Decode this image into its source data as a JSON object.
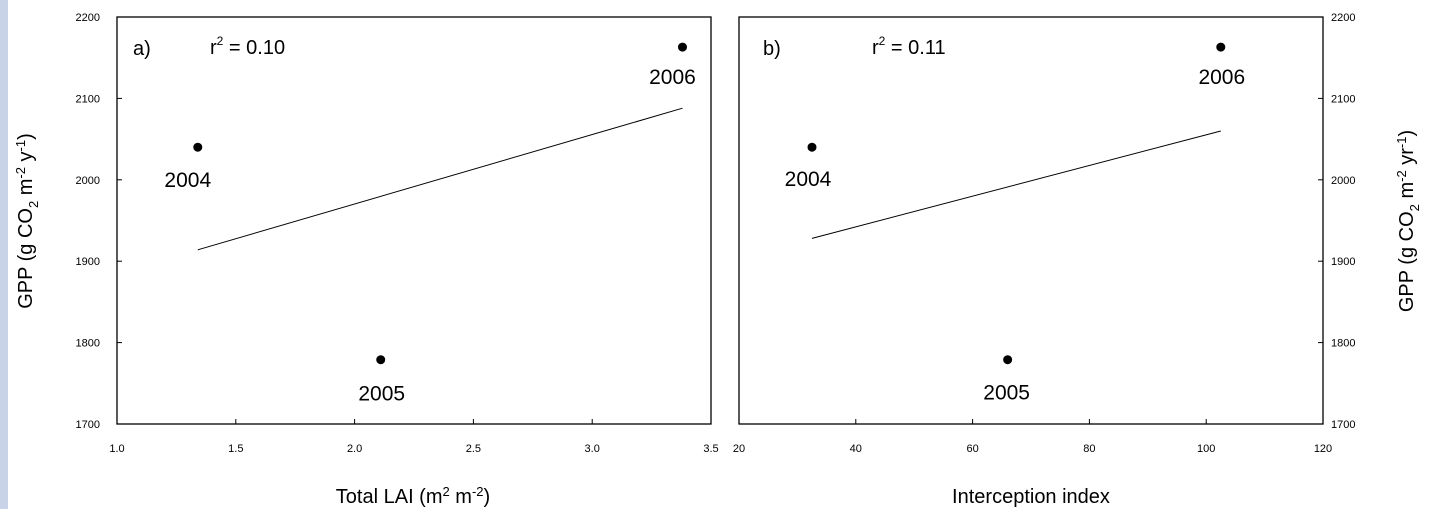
{
  "page": {
    "edge_color": "#c9d3e8"
  },
  "chart_data": [
    {
      "type": "scatter",
      "panel_label": "a)",
      "r2_label": "r² = 0.10",
      "r2_parts": {
        "r": "r",
        "sup": "2",
        "rest": " = 0.10"
      },
      "xlabel": "Total LAI (m² m⁻²)",
      "xlabel_parts": {
        "a": "Total LAI (m",
        "s1": "2",
        "b": " m",
        "s2": "-2",
        "c": ")"
      },
      "ylabel": "GPP (g CO₂ m⁻² y⁻¹)",
      "ylabel_parts": {
        "a": "GPP (g CO",
        "sub": "2",
        "b": " m",
        "s1": "-2",
        "c": " y",
        "s2": "-1",
        "d": ")"
      },
      "y_axis_side": "left",
      "xlim": [
        1.0,
        3.5
      ],
      "ylim": [
        1700,
        2200
      ],
      "xticks": [
        "1.0",
        "1.5",
        "2.0",
        "2.5",
        "3.0",
        "3.5"
      ],
      "yticks": [
        "1700",
        "1800",
        "1900",
        "2000",
        "2100",
        "2200"
      ],
      "points": [
        {
          "x": 1.34,
          "y": 2040,
          "label": "2004"
        },
        {
          "x": 2.11,
          "y": 1779,
          "label": "2005"
        },
        {
          "x": 3.38,
          "y": 2163,
          "label": "2006"
        }
      ],
      "fit_line": {
        "x": [
          1.34,
          3.38
        ],
        "y": [
          1914,
          2088
        ]
      }
    },
    {
      "type": "scatter",
      "panel_label": "b)",
      "r2_label": "r² = 0.11",
      "r2_parts": {
        "r": "r",
        "sup": "2",
        "rest": " = 0.11"
      },
      "xlabel": "Interception index",
      "ylabel": "GPP (g CO₂ m⁻² yr⁻¹)",
      "ylabel_parts": {
        "a": "GPP (g CO",
        "sub": "2",
        "b": " m",
        "s1": "-2",
        "c": " yr",
        "s2": "-1",
        "d": ")"
      },
      "y_axis_side": "right",
      "xlim": [
        20,
        120
      ],
      "ylim": [
        1700,
        2200
      ],
      "xticks": [
        "20",
        "40",
        "60",
        "80",
        "100",
        "120"
      ],
      "yticks": [
        "1700",
        "1800",
        "1900",
        "2000",
        "2100",
        "2200"
      ],
      "points": [
        {
          "x": 32.5,
          "y": 2040,
          "label": "2004"
        },
        {
          "x": 66,
          "y": 1779,
          "label": "2005"
        },
        {
          "x": 102.5,
          "y": 2163,
          "label": "2006"
        }
      ],
      "fit_line": {
        "x": [
          32.5,
          102.5
        ],
        "y": [
          1928,
          2060
        ]
      }
    }
  ]
}
